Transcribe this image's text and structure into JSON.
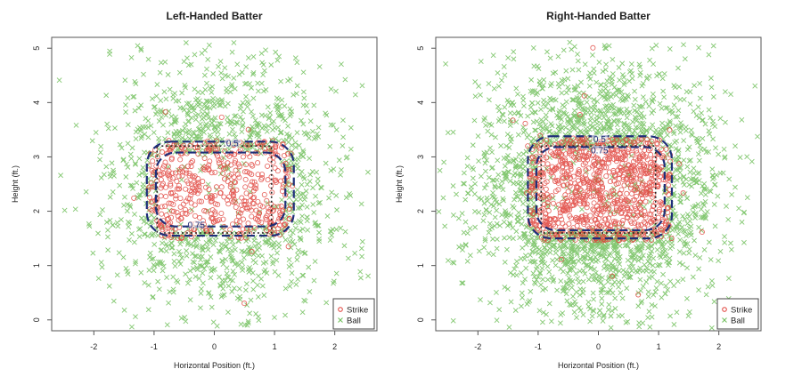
{
  "chart_data": [
    {
      "type": "scatter",
      "title": "Left-Handed Batter",
      "xlabel": "Horizontal Position (ft.)",
      "ylabel": "Height (ft.)",
      "xlim": [
        -2.7,
        2.7
      ],
      "ylim": [
        -0.2,
        5.2
      ],
      "xticks": [
        "-2",
        "-1",
        "0",
        "1",
        "2"
      ],
      "yticks": [
        "0",
        "1",
        "2",
        "3",
        "4",
        "5"
      ],
      "grid": false,
      "legend": {
        "placement": "bottom-right",
        "entries": [
          "Strike",
          "Ball"
        ]
      },
      "strike_zone": {
        "x": [
          -0.95,
          0.95
        ],
        "y": [
          1.6,
          3.2
        ]
      },
      "contours": [
        {
          "level": "0.5",
          "x": [
            -1.12,
            1.32
          ],
          "y": [
            1.55,
            3.28
          ],
          "label_at": [
            0.3,
            3.25
          ]
        },
        {
          "level": "0.75",
          "x": [
            -0.97,
            1.18
          ],
          "y": [
            1.72,
            3.08
          ],
          "label_at": [
            -0.3,
            1.75
          ]
        }
      ],
      "series": [
        {
          "name": "Strike",
          "marker": "circle",
          "color": "#e0413a",
          "count": 520,
          "seed": 11,
          "region": {
            "x": [
              -1.1,
              1.3
            ],
            "y": [
              1.5,
              3.3
            ]
          }
        },
        {
          "name": "Ball",
          "marker": "x",
          "color": "#6fbf5a",
          "count": 1150,
          "seed": 23,
          "center": [
            0.15,
            2.4
          ],
          "sd": [
            0.95,
            1.15
          ]
        }
      ]
    },
    {
      "type": "scatter",
      "title": "Right-Handed Batter",
      "xlabel": "Horizontal Position (ft.)",
      "ylabel": "Height (ft.)",
      "xlim": [
        -2.7,
        2.7
      ],
      "ylim": [
        -0.2,
        5.2
      ],
      "xticks": [
        "-2",
        "-1",
        "0",
        "1",
        "2"
      ],
      "yticks": [
        "0",
        "1",
        "2",
        "3",
        "4",
        "5"
      ],
      "grid": false,
      "legend": {
        "placement": "bottom-right",
        "entries": [
          "Strike",
          "Ball"
        ]
      },
      "strike_zone": {
        "x": [
          -0.95,
          0.95
        ],
        "y": [
          1.6,
          3.2
        ]
      },
      "contours": [
        {
          "level": "0.5",
          "x": [
            -1.17,
            1.22
          ],
          "y": [
            1.5,
            3.38
          ],
          "label_at": [
            0.02,
            3.33
          ]
        },
        {
          "level": "0.75",
          "x": [
            -1.03,
            1.1
          ],
          "y": [
            1.65,
            3.18
          ],
          "label_at": [
            0.02,
            3.12
          ]
        }
      ],
      "series": [
        {
          "name": "Strike",
          "marker": "circle",
          "color": "#e0413a",
          "count": 950,
          "seed": 37,
          "region": {
            "x": [
              -1.15,
              1.2
            ],
            "y": [
              1.45,
              3.35
            ]
          }
        },
        {
          "name": "Ball",
          "marker": "x",
          "color": "#6fbf5a",
          "count": 1900,
          "seed": 53,
          "center": [
            0.0,
            2.4
          ],
          "sd": [
            0.95,
            1.15
          ]
        }
      ]
    }
  ]
}
